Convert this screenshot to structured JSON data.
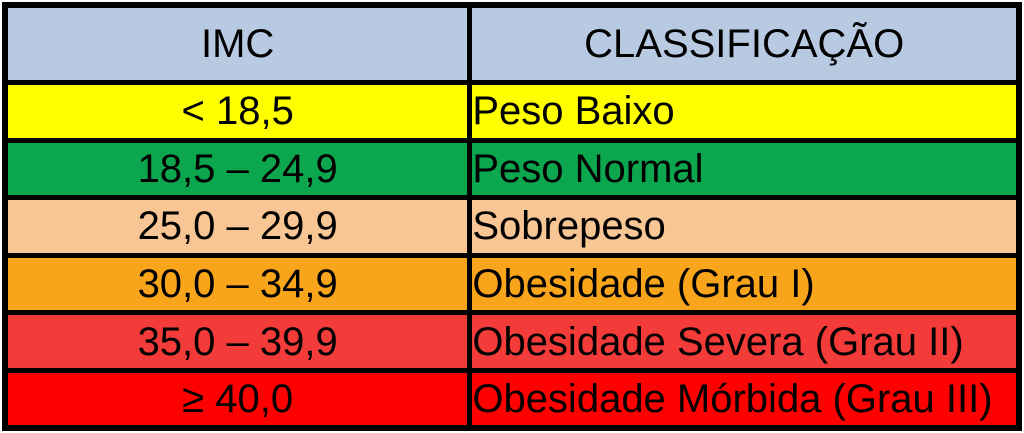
{
  "table": {
    "headers": [
      "IMC",
      "CLASSIFICAÇÃO"
    ],
    "header_bg": "#b8c9e2",
    "border_color": "#000000",
    "text_color": "#000000",
    "rows": [
      {
        "imc": "< 18,5",
        "classification": "Peso Baixo",
        "color": "#ffff00"
      },
      {
        "imc": "18,5 – 24,9",
        "classification": "Peso Normal",
        "color": "#0ca64f"
      },
      {
        "imc": "25,0 – 29,9",
        "classification": "Sobrepeso",
        "color": "#f8c595"
      },
      {
        "imc": "30,0 – 34,9",
        "classification": "Obesidade (Grau I)",
        "color": "#f9a51b"
      },
      {
        "imc": "35,0 – 39,9",
        "classification": "Obesidade Severa (Grau II)",
        "color": "#f33b3a"
      },
      {
        "imc": "≥ 40,0",
        "classification": "Obesidade Mórbida (Grau III)",
        "color": "#fe0000"
      }
    ]
  },
  "chart_data": {
    "type": "table",
    "columns": [
      "IMC",
      "CLASSIFICAÇÃO"
    ],
    "rows": [
      [
        "< 18,5",
        "Peso Baixo"
      ],
      [
        "18,5 – 24,9",
        "Peso Normal"
      ],
      [
        "25,0 – 29,9",
        "Sobrepeso"
      ],
      [
        "30,0 – 34,9",
        "Obesidade (Grau I)"
      ],
      [
        "35,0 – 39,9",
        "Obesidade Severa (Grau II)"
      ],
      [
        "≥ 40,0",
        "Obesidade Mórbida (Grau III)"
      ]
    ],
    "row_colors": [
      "#ffff00",
      "#0ca64f",
      "#f8c595",
      "#f9a51b",
      "#f33b3a",
      "#fe0000"
    ],
    "header_color": "#b8c9e2",
    "layout_hints": {
      "grid": "thick black borders",
      "left_column_align": "center",
      "right_column_align": "left"
    }
  }
}
